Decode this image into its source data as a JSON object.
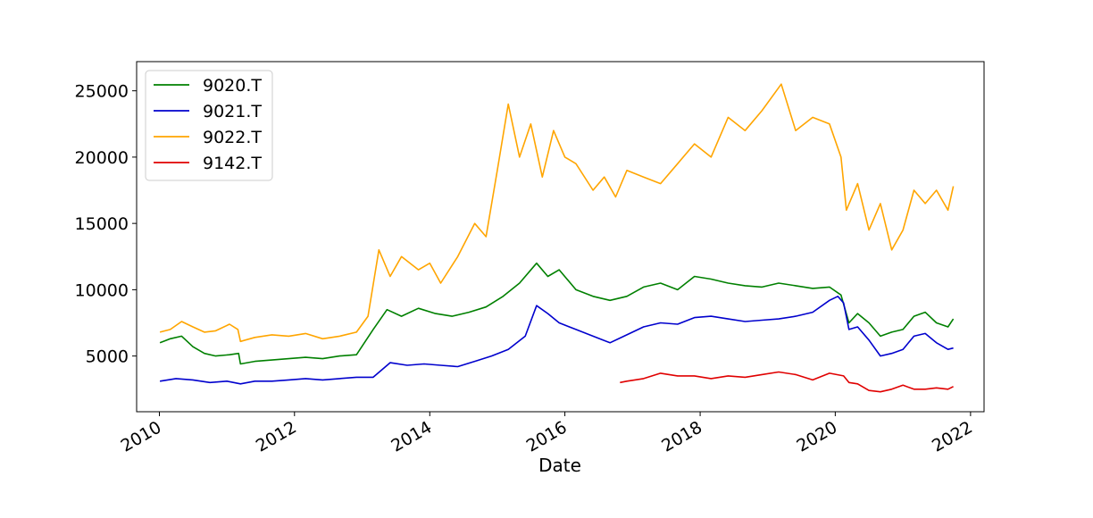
{
  "chart_data": {
    "type": "line",
    "title": "",
    "xlabel": "Date",
    "ylabel": "",
    "xlim": [
      "2009-08-31",
      "2022-03-15"
    ],
    "ylim": [
      800,
      27200
    ],
    "x_ticks": [
      "2010-01-01",
      "2012-01-01",
      "2014-01-01",
      "2016-01-01",
      "2018-01-01",
      "2020-01-01",
      "2022-01-01"
    ],
    "x_tick_labels": [
      "2010",
      "2012",
      "2014",
      "2016",
      "2018",
      "2020",
      "2022"
    ],
    "y_ticks": [
      5000,
      10000,
      15000,
      20000,
      25000
    ],
    "y_tick_labels": [
      "5000",
      "10000",
      "15000",
      "20000",
      "25000"
    ],
    "grid": false,
    "legend": {
      "placement": "top-left"
    },
    "series": [
      {
        "name": "9020.T",
        "color": "#008000",
        "x": [
          "2010-01-04",
          "2010-03-01",
          "2010-05-01",
          "2010-07-01",
          "2010-09-01",
          "2010-11-01",
          "2011-01-15",
          "2011-03-05",
          "2011-03-15",
          "2011-06-01",
          "2011-09-01",
          "2011-12-01",
          "2012-03-01",
          "2012-06-01",
          "2012-09-01",
          "2012-12-01",
          "2013-03-01",
          "2013-05-15",
          "2013-08-01",
          "2013-11-01",
          "2014-02-01",
          "2014-05-01",
          "2014-08-01",
          "2014-11-01",
          "2015-02-01",
          "2015-05-01",
          "2015-08-01",
          "2015-10-01",
          "2015-12-01",
          "2016-03-01",
          "2016-06-01",
          "2016-09-01",
          "2016-12-01",
          "2017-03-01",
          "2017-06-01",
          "2017-09-01",
          "2017-12-01",
          "2018-03-01",
          "2018-06-01",
          "2018-09-01",
          "2018-12-01",
          "2019-03-01",
          "2019-06-01",
          "2019-09-01",
          "2019-12-01",
          "2020-02-01",
          "2020-03-15",
          "2020-05-01",
          "2020-07-01",
          "2020-09-01",
          "2020-11-01",
          "2021-01-01",
          "2021-03-01",
          "2021-05-01",
          "2021-07-01",
          "2021-09-01",
          "2021-09-30"
        ],
        "values": [
          6000,
          6300,
          6500,
          5700,
          5200,
          5000,
          5100,
          5200,
          4400,
          4600,
          4700,
          4800,
          4900,
          4800,
          5000,
          5100,
          7000,
          8500,
          8000,
          8600,
          8200,
          8000,
          8300,
          8700,
          9500,
          10500,
          12000,
          11000,
          11500,
          10000,
          9500,
          9200,
          9500,
          10200,
          10500,
          10000,
          11000,
          10800,
          10500,
          10300,
          10200,
          10500,
          10300,
          10100,
          10200,
          9600,
          7500,
          8200,
          7500,
          6500,
          6800,
          7000,
          8000,
          8300,
          7500,
          7200,
          7800
        ]
      },
      {
        "name": "9021.T",
        "color": "#0000cd",
        "x": [
          "2010-01-04",
          "2010-04-01",
          "2010-07-01",
          "2010-10-01",
          "2011-01-01",
          "2011-03-15",
          "2011-06-01",
          "2011-09-01",
          "2011-12-01",
          "2012-03-01",
          "2012-06-01",
          "2012-09-01",
          "2012-12-01",
          "2013-03-01",
          "2013-06-01",
          "2013-09-01",
          "2013-12-01",
          "2014-03-01",
          "2014-06-01",
          "2014-09-01",
          "2014-12-01",
          "2015-03-01",
          "2015-06-01",
          "2015-08-01",
          "2015-10-01",
          "2015-12-01",
          "2016-03-01",
          "2016-06-01",
          "2016-09-01",
          "2016-12-01",
          "2017-03-01",
          "2017-06-01",
          "2017-09-01",
          "2017-12-01",
          "2018-03-01",
          "2018-06-01",
          "2018-09-01",
          "2018-12-01",
          "2019-03-01",
          "2019-06-01",
          "2019-09-01",
          "2019-12-01",
          "2020-01-15",
          "2020-02-15",
          "2020-03-15",
          "2020-05-01",
          "2020-07-01",
          "2020-09-01",
          "2020-11-01",
          "2021-01-01",
          "2021-03-01",
          "2021-05-01",
          "2021-07-01",
          "2021-09-01",
          "2021-09-30"
        ],
        "values": [
          3100,
          3300,
          3200,
          3000,
          3100,
          2900,
          3100,
          3100,
          3200,
          3300,
          3200,
          3300,
          3400,
          3400,
          4500,
          4300,
          4400,
          4300,
          4200,
          4600,
          5000,
          5500,
          6500,
          8800,
          8200,
          7500,
          7000,
          6500,
          6000,
          6600,
          7200,
          7500,
          7400,
          7900,
          8000,
          7800,
          7600,
          7700,
          7800,
          8000,
          8300,
          9200,
          9500,
          9000,
          7000,
          7200,
          6200,
          5000,
          5200,
          5500,
          6500,
          6700,
          6000,
          5500,
          5600
        ]
      },
      {
        "name": "9022.T",
        "color": "#ffa500",
        "x": [
          "2010-01-04",
          "2010-03-01",
          "2010-05-01",
          "2010-07-01",
          "2010-09-01",
          "2010-11-01",
          "2011-01-15",
          "2011-03-01",
          "2011-03-15",
          "2011-06-01",
          "2011-09-01",
          "2011-12-01",
          "2012-03-01",
          "2012-06-01",
          "2012-09-01",
          "2012-12-01",
          "2013-02-01",
          "2013-04-01",
          "2013-06-01",
          "2013-08-01",
          "2013-11-01",
          "2014-01-01",
          "2014-03-01",
          "2014-06-01",
          "2014-09-01",
          "2014-11-01",
          "2015-01-01",
          "2015-03-01",
          "2015-05-01",
          "2015-07-01",
          "2015-09-01",
          "2015-11-01",
          "2016-01-01",
          "2016-03-01",
          "2016-06-01",
          "2016-08-01",
          "2016-10-01",
          "2016-12-01",
          "2017-03-01",
          "2017-06-01",
          "2017-09-01",
          "2017-12-01",
          "2018-03-01",
          "2018-06-01",
          "2018-09-01",
          "2018-12-01",
          "2019-03-15",
          "2019-06-01",
          "2019-09-01",
          "2019-12-01",
          "2020-02-01",
          "2020-03-01",
          "2020-05-01",
          "2020-07-01",
          "2020-09-01",
          "2020-11-01",
          "2021-01-01",
          "2021-03-01",
          "2021-05-01",
          "2021-07-01",
          "2021-09-01",
          "2021-09-30"
        ],
        "values": [
          6800,
          7000,
          7600,
          7200,
          6800,
          6900,
          7400,
          7000,
          6100,
          6400,
          6600,
          6500,
          6700,
          6300,
          6500,
          6800,
          8000,
          13000,
          11000,
          12500,
          11500,
          12000,
          10500,
          12500,
          15000,
          14000,
          19000,
          24000,
          20000,
          22500,
          18500,
          22000,
          20000,
          19500,
          17500,
          18500,
          17000,
          19000,
          18500,
          18000,
          19500,
          21000,
          20000,
          23000,
          22000,
          23500,
          25500,
          22000,
          23000,
          22500,
          20000,
          16000,
          18000,
          14500,
          16500,
          13000,
          14500,
          17500,
          16500,
          17500,
          16000,
          17800
        ]
      },
      {
        "name": "9142.T",
        "color": "#e00000",
        "x": [
          "2016-10-25",
          "2016-12-01",
          "2017-03-01",
          "2017-06-01",
          "2017-09-01",
          "2017-12-01",
          "2018-03-01",
          "2018-06-01",
          "2018-09-01",
          "2018-12-01",
          "2019-03-01",
          "2019-06-01",
          "2019-09-01",
          "2019-12-01",
          "2020-02-15",
          "2020-03-15",
          "2020-05-01",
          "2020-07-01",
          "2020-09-01",
          "2020-11-01",
          "2021-01-01",
          "2021-03-01",
          "2021-05-01",
          "2021-07-01",
          "2021-09-01",
          "2021-09-30"
        ],
        "values": [
          3000,
          3100,
          3300,
          3700,
          3500,
          3500,
          3300,
          3500,
          3400,
          3600,
          3800,
          3600,
          3200,
          3700,
          3500,
          3000,
          2900,
          2400,
          2300,
          2500,
          2800,
          2500,
          2500,
          2600,
          2500,
          2700
        ]
      }
    ]
  }
}
